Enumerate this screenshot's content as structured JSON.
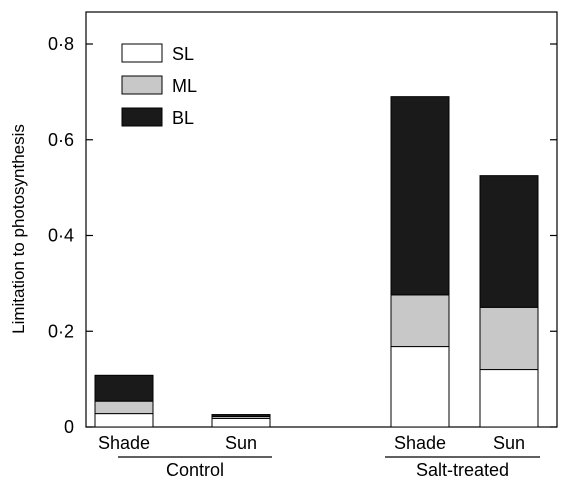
{
  "chart_data": {
    "type": "bar",
    "stacked": true,
    "title": "",
    "xlabel": "",
    "ylabel": "Limitation to photosynthesis",
    "ylim": [
      0,
      0.8
    ],
    "yticks": [
      {
        "value": 0,
        "label": "0"
      },
      {
        "value": 0.2,
        "label": "0·2"
      },
      {
        "value": 0.4,
        "label": "0·4"
      },
      {
        "value": 0.6,
        "label": "0·6"
      },
      {
        "value": 0.8,
        "label": "0·8"
      }
    ],
    "groups": [
      {
        "label": "Control",
        "categories": [
          "Shade",
          "Sun"
        ]
      },
      {
        "label": "Salt-treated",
        "categories": [
          "Shade",
          "Sun"
        ]
      }
    ],
    "categories": [
      "Shade",
      "Sun",
      "Shade",
      "Sun"
    ],
    "series": [
      {
        "name": "SL",
        "color": "#ffffff",
        "values": [
          0.028,
          0.018,
          0.168,
          0.12
        ]
      },
      {
        "name": "ML",
        "color": "#c8c8c8",
        "values": [
          0.026,
          0.004,
          0.108,
          0.13
        ]
      },
      {
        "name": "BL",
        "color": "#1a1a1a",
        "values": [
          0.054,
          0.004,
          0.414,
          0.275
        ]
      }
    ],
    "legend_position": "top-left",
    "grid": false
  }
}
